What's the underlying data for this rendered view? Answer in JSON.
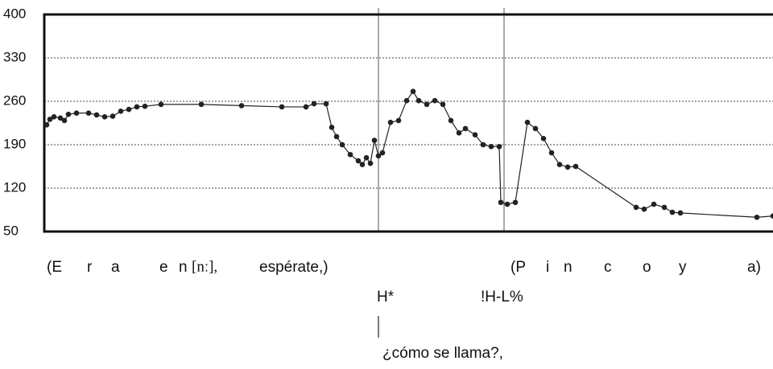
{
  "chart_data": {
    "type": "line",
    "ylim": [
      50,
      400
    ],
    "yticks": [
      50,
      120,
      190,
      260,
      330,
      400
    ],
    "grid": true,
    "color": "#222",
    "xlim": [
      0,
      905
    ],
    "x": [
      3,
      7,
      12,
      20,
      25,
      30,
      40,
      55,
      65,
      75,
      85,
      95,
      105,
      115,
      125,
      145,
      195,
      245,
      295,
      325,
      335,
      350,
      357,
      363,
      370,
      380,
      390,
      395,
      400,
      405,
      410,
      415,
      420,
      430,
      440,
      450,
      458,
      465,
      475,
      485,
      495,
      505,
      515,
      523,
      535,
      545,
      555,
      565,
      567,
      575,
      585,
      600,
      610,
      620,
      630,
      640,
      650,
      660,
      735,
      745,
      757,
      770,
      780,
      790,
      885,
      905
    ],
    "values": [
      222,
      231,
      235,
      233,
      229,
      239,
      241,
      241,
      238,
      235,
      236,
      244,
      247,
      251,
      252,
      255,
      255,
      253,
      251,
      251,
      256,
      256,
      218,
      203,
      190,
      174,
      164,
      158,
      169,
      160,
      197,
      172,
      177,
      226,
      229,
      261,
      276,
      261,
      255,
      261,
      255,
      229,
      209,
      216,
      206,
      190,
      187,
      187,
      97,
      94,
      97,
      226,
      216,
      200,
      177,
      158,
      154,
      155,
      89,
      86,
      94,
      89,
      81,
      80,
      73,
      75
    ],
    "vlines": [
      415,
      571
    ],
    "words1": [
      "(E",
      "r",
      "a",
      "e",
      "n",
      "[nː],",
      "espérate,)"
    ],
    "words2": [
      "(P",
      "i",
      "n",
      "c",
      "o",
      "y",
      "a)"
    ],
    "tone1": "H*",
    "tone2": "!H-L%",
    "phrase": "¿cómo se llama?,"
  }
}
